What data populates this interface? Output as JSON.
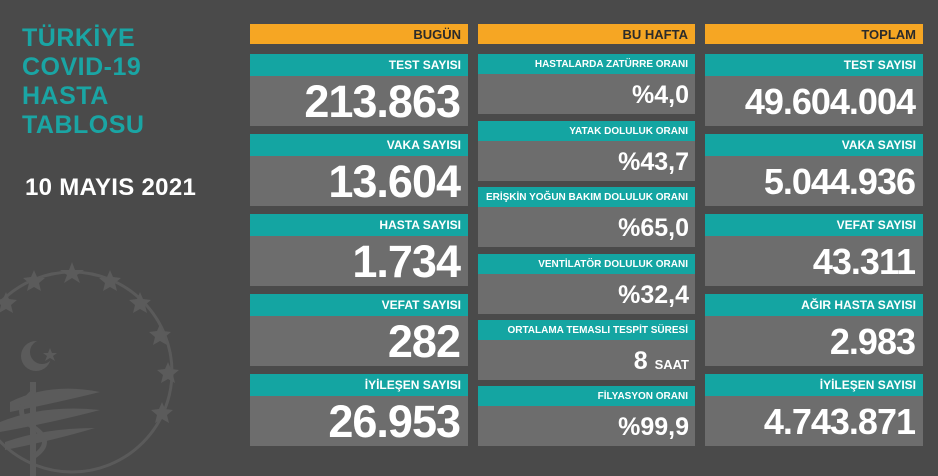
{
  "title_lines": [
    "TÜRKİYE",
    "COVID-19",
    "HASTA",
    "TABLOSU"
  ],
  "date": "10 MAYIS 2021",
  "today": {
    "header": "BUGÜN",
    "items": [
      {
        "label": "TEST SAYISI",
        "value": "213.863"
      },
      {
        "label": "VAKA SAYISI",
        "value": "13.604"
      },
      {
        "label": "HASTA SAYISI",
        "value": "1.734"
      },
      {
        "label": "VEFAT SAYISI",
        "value": "282"
      },
      {
        "label": "İYİLEŞEN SAYISI",
        "value": "26.953"
      }
    ]
  },
  "week": {
    "header": "BU HAFTA",
    "items": [
      {
        "label": "HASTALARDA ZATÜRRE ORANI",
        "value": "%4,0"
      },
      {
        "label": "YATAK DOLULUK ORANI",
        "value": "%43,7"
      },
      {
        "label": "ERİŞKİN YOĞUN BAKIM DOLULUK ORANI",
        "value": "%65,0"
      },
      {
        "label": "VENTİLATÖR DOLULUK ORANI",
        "value": "%32,4"
      },
      {
        "label": "ORTALAMA TEMASLI TESPİT SÜRESİ",
        "value": "8",
        "unit": "SAAT"
      },
      {
        "label": "FİLYASYON ORANI",
        "value": "%99,9"
      }
    ]
  },
  "total": {
    "header": "TOPLAM",
    "items": [
      {
        "label": "TEST SAYISI",
        "value": "49.604.004"
      },
      {
        "label": "VAKA SAYISI",
        "value": "5.044.936"
      },
      {
        "label": "VEFAT SAYISI",
        "value": "43.311"
      },
      {
        "label": "AĞIR HASTA SAYISI",
        "value": "2.983"
      },
      {
        "label": "İYİLEŞEN SAYISI",
        "value": "4.743.871"
      }
    ]
  },
  "colors": {
    "background": "#4a4a4a",
    "accent_teal": "#14a5a2",
    "header_orange": "#f6a623",
    "value_box": "#6d6d6d",
    "title_teal": "#1aa5a4"
  },
  "icons": [
    "ministry-of-health-emblem-icon"
  ]
}
